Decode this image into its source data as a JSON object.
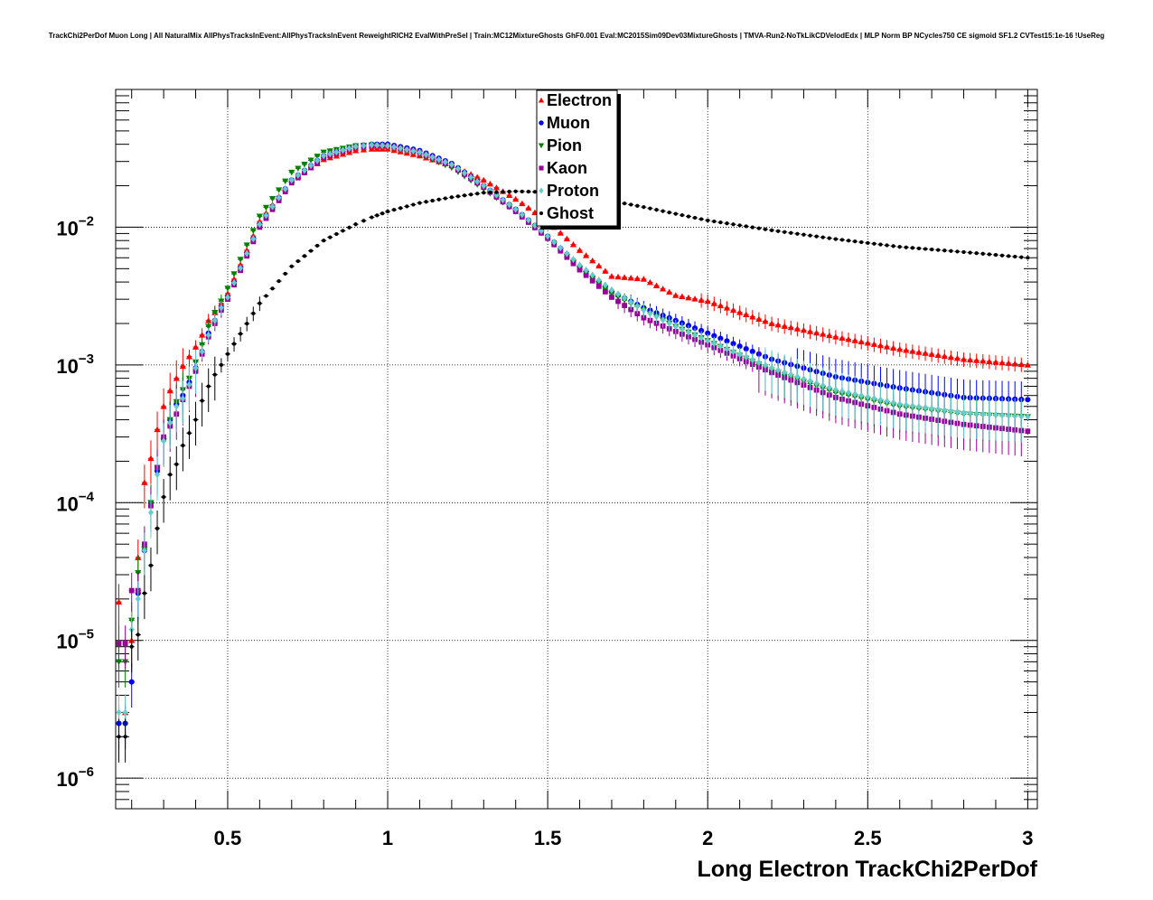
{
  "chart_data": {
    "type": "scatter",
    "title": "TrackChi2PerDof Muon Long | All NaturalMix AllPhysTracksInEvent:AllPhysTracksInEvent ReweightRICH2 EvalWithPreSel | Train:MC12MixtureGhosts GhF0.001 Eval:MC2015Sim09Dev03MixtureGhosts | TMVA-Run2-NoTkLikCDVelodEdx | MLP Norm BP NCycles750 CE sigmoid SF1.2 CVTest15:1e-16 !UseReg",
    "xlabel": "Long Electron TrackChi2PerDof",
    "ylabel": "",
    "xlim": [
      0.15,
      3.03
    ],
    "ylim": [
      6e-07,
      0.1
    ],
    "yscale": "log",
    "grid": true,
    "legend": "top-center",
    "x_ticks": [
      "0.5",
      "1",
      "1.5",
      "2",
      "2.5",
      "3"
    ],
    "y_ticks": [
      {
        "base": "10",
        "exp": "−2",
        "value": 0.01
      },
      {
        "base": "10",
        "exp": "−3",
        "value": 0.001
      },
      {
        "base": "10",
        "exp": "−4",
        "value": 0.0001
      },
      {
        "base": "10",
        "exp": "−5",
        "value": 1e-05
      },
      {
        "base": "10",
        "exp": "−6",
        "value": 1e-06
      }
    ],
    "x": [
      0.16,
      0.18,
      0.2,
      0.22,
      0.24,
      0.26,
      0.28,
      0.3,
      0.32,
      0.34,
      0.36,
      0.38,
      0.4,
      0.42,
      0.44,
      0.46,
      0.48,
      0.5,
      0.6,
      0.7,
      0.8,
      0.9,
      0.95,
      1.0,
      1.1,
      1.2,
      1.3,
      1.4,
      1.5,
      1.6,
      1.7,
      1.8,
      1.9,
      2.0,
      2.2,
      2.4,
      2.6,
      2.8,
      3.0
    ],
    "series": [
      {
        "name": "Electron",
        "color": "#ff0000",
        "marker": "triangle-up",
        "values": [
          1.9e-05,
          3e-06,
          1e-05,
          4e-05,
          0.00014,
          0.00021,
          0.00034,
          0.0005,
          0.00065,
          0.0008,
          0.00098,
          0.00115,
          0.00135,
          0.00165,
          0.0021,
          0.0024,
          0.0028,
          0.0033,
          0.011,
          0.022,
          0.031,
          0.036,
          0.037,
          0.037,
          0.033,
          0.028,
          0.022,
          0.016,
          0.011,
          0.0068,
          0.0044,
          0.0042,
          0.0032,
          0.0029,
          0.002,
          0.0016,
          0.0013,
          0.0011,
          0.001
        ]
      },
      {
        "name": "Muon",
        "color": "#0000ff",
        "marker": "circle",
        "values": [
          2.5e-06,
          2.5e-06,
          5e-06,
          2.2e-05,
          4.5e-05,
          0.0001,
          0.00017,
          0.00029,
          0.0004,
          0.00052,
          0.0006,
          0.00075,
          0.00095,
          0.00125,
          0.0017,
          0.0021,
          0.0026,
          0.0031,
          0.0105,
          0.022,
          0.033,
          0.039,
          0.04,
          0.04,
          0.036,
          0.029,
          0.02,
          0.0135,
          0.0086,
          0.0052,
          0.0034,
          0.0026,
          0.0021,
          0.0017,
          0.0011,
          0.00082,
          0.00068,
          0.00058,
          0.00056
        ]
      },
      {
        "name": "Pion",
        "color": "#008000",
        "marker": "triangle-down",
        "values": [
          7e-06,
          7e-06,
          1.4e-05,
          3.1e-05,
          4.6e-05,
          0.0001,
          0.00018,
          0.00028,
          0.0004,
          0.00054,
          0.00066,
          0.0008,
          0.00105,
          0.0014,
          0.0019,
          0.0024,
          0.0029,
          0.0036,
          0.012,
          0.025,
          0.035,
          0.039,
          0.0395,
          0.039,
          0.034,
          0.027,
          0.019,
          0.013,
          0.0083,
          0.005,
          0.0033,
          0.0025,
          0.0019,
          0.0015,
          0.00092,
          0.00063,
          0.0005,
          0.00044,
          0.00042
        ]
      },
      {
        "name": "Kaon",
        "color": "#990099",
        "marker": "square",
        "values": [
          9.5e-06,
          9.5e-06,
          2.3e-05,
          2.3e-05,
          5e-05,
          9.5e-05,
          0.00018,
          0.0003,
          0.00036,
          0.00044,
          0.00056,
          0.0007,
          0.0009,
          0.0012,
          0.0016,
          0.002,
          0.0025,
          0.003,
          0.01,
          0.021,
          0.032,
          0.038,
          0.039,
          0.039,
          0.035,
          0.028,
          0.0195,
          0.013,
          0.0083,
          0.0049,
          0.0031,
          0.0022,
          0.00175,
          0.0014,
          0.00088,
          0.00058,
          0.00044,
          0.00037,
          0.00033
        ]
      },
      {
        "name": "Proton",
        "color": "#66cccc",
        "marker": "diamond",
        "values": [
          3e-06,
          3e-06,
          1.2e-05,
          2e-05,
          4.5e-05,
          8.5e-05,
          0.00016,
          0.00028,
          0.00038,
          0.0005,
          0.00057,
          0.00072,
          0.00095,
          0.00125,
          0.00165,
          0.0021,
          0.0026,
          0.0031,
          0.0105,
          0.022,
          0.033,
          0.0385,
          0.0395,
          0.039,
          0.035,
          0.0285,
          0.02,
          0.0135,
          0.0086,
          0.0053,
          0.0035,
          0.0025,
          0.0019,
          0.0015,
          0.00095,
          0.00066,
          0.00052,
          0.00045,
          0.00042
        ]
      },
      {
        "name": "Ghost",
        "color": "#000000",
        "marker": "circle",
        "values": [
          2e-06,
          2e-06,
          9e-06,
          1.1e-05,
          2.2e-05,
          3.5e-05,
          6.5e-05,
          0.00011,
          0.00016,
          0.00019,
          0.00026,
          0.00032,
          0.0004,
          0.00055,
          0.0007,
          0.00085,
          0.001,
          0.0012,
          0.0028,
          0.0052,
          0.008,
          0.0105,
          0.0118,
          0.013,
          0.015,
          0.0165,
          0.0178,
          0.0182,
          0.018,
          0.017,
          0.0155,
          0.014,
          0.0125,
          0.0112,
          0.0095,
          0.0082,
          0.0072,
          0.0066,
          0.006
        ]
      }
    ]
  }
}
